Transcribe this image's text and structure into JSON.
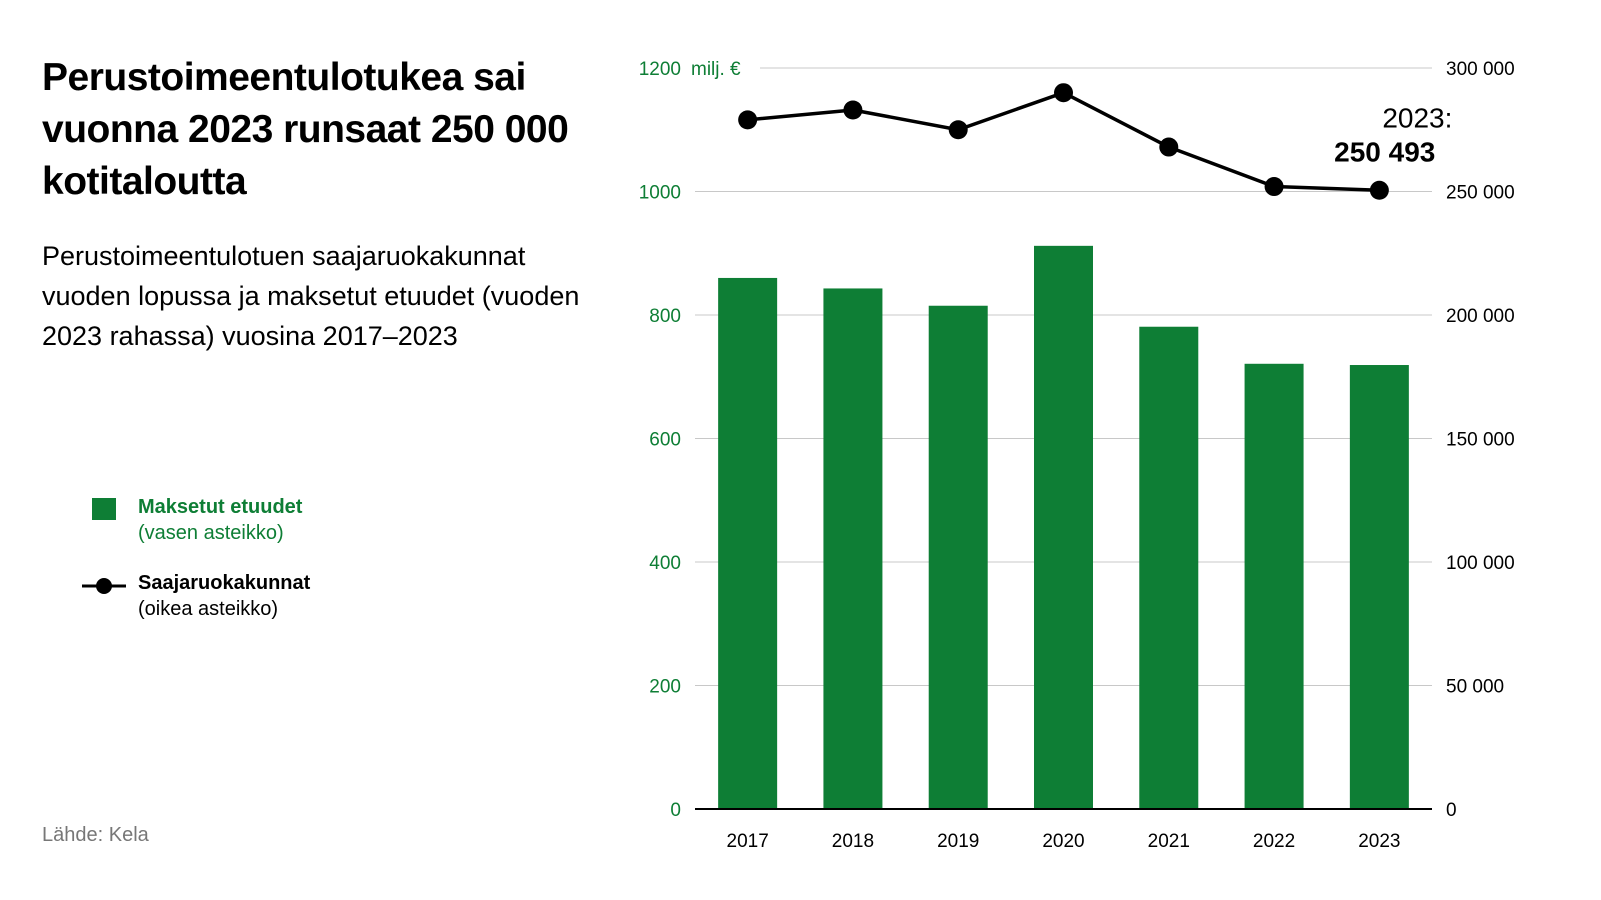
{
  "title": "Perustoimeentulotukea sai vuonna 2023 runsaat 250 000 kotitaloutta",
  "subtitle": "Perustoimeentulotuen saajaruokakunnat vuoden lopussa ja maksetut etuudet (vuoden 2023 rahassa) vuosina 2017–2023",
  "source": "Lähde: Kela",
  "colors": {
    "bar": "#0e7e35",
    "line": "#000000",
    "left_axis_text": "#0e7e35",
    "grid": "#c8c8c8",
    "source_text": "#777777"
  },
  "legend": [
    {
      "name": "Maksetut etuudet",
      "note": "(vasen asteikko)",
      "symbol": "green-square"
    },
    {
      "name": "Saajaruokakunnat",
      "note": "(oikea asteikko)",
      "symbol": "line-with-dot"
    }
  ],
  "chart_data": {
    "type": "bar+line",
    "categories": [
      "2017",
      "2018",
      "2019",
      "2020",
      "2021",
      "2022",
      "2023"
    ],
    "series": [
      {
        "name": "Maksetut etuudet",
        "type": "bar",
        "axis": "left",
        "values": [
          860,
          843,
          815,
          912,
          781,
          721,
          719
        ]
      },
      {
        "name": "Saajaruokakunnat",
        "type": "line",
        "axis": "right",
        "values": [
          279000,
          283000,
          275000,
          290000,
          268000,
          252000,
          250493
        ]
      }
    ],
    "left_axis": {
      "unit": "milj. €",
      "ylim": [
        0,
        1200
      ],
      "ticks": [
        "0",
        "200",
        "400",
        "600",
        "800",
        "1000",
        "1200"
      ]
    },
    "right_axis": {
      "ylim": [
        0,
        300000
      ],
      "ticks": [
        "0",
        "50 000",
        "100 000",
        "150 000",
        "200 000",
        "250 000",
        "300 000"
      ]
    },
    "annotation": {
      "label": "2023:",
      "value": "250 493"
    },
    "grid": true
  }
}
